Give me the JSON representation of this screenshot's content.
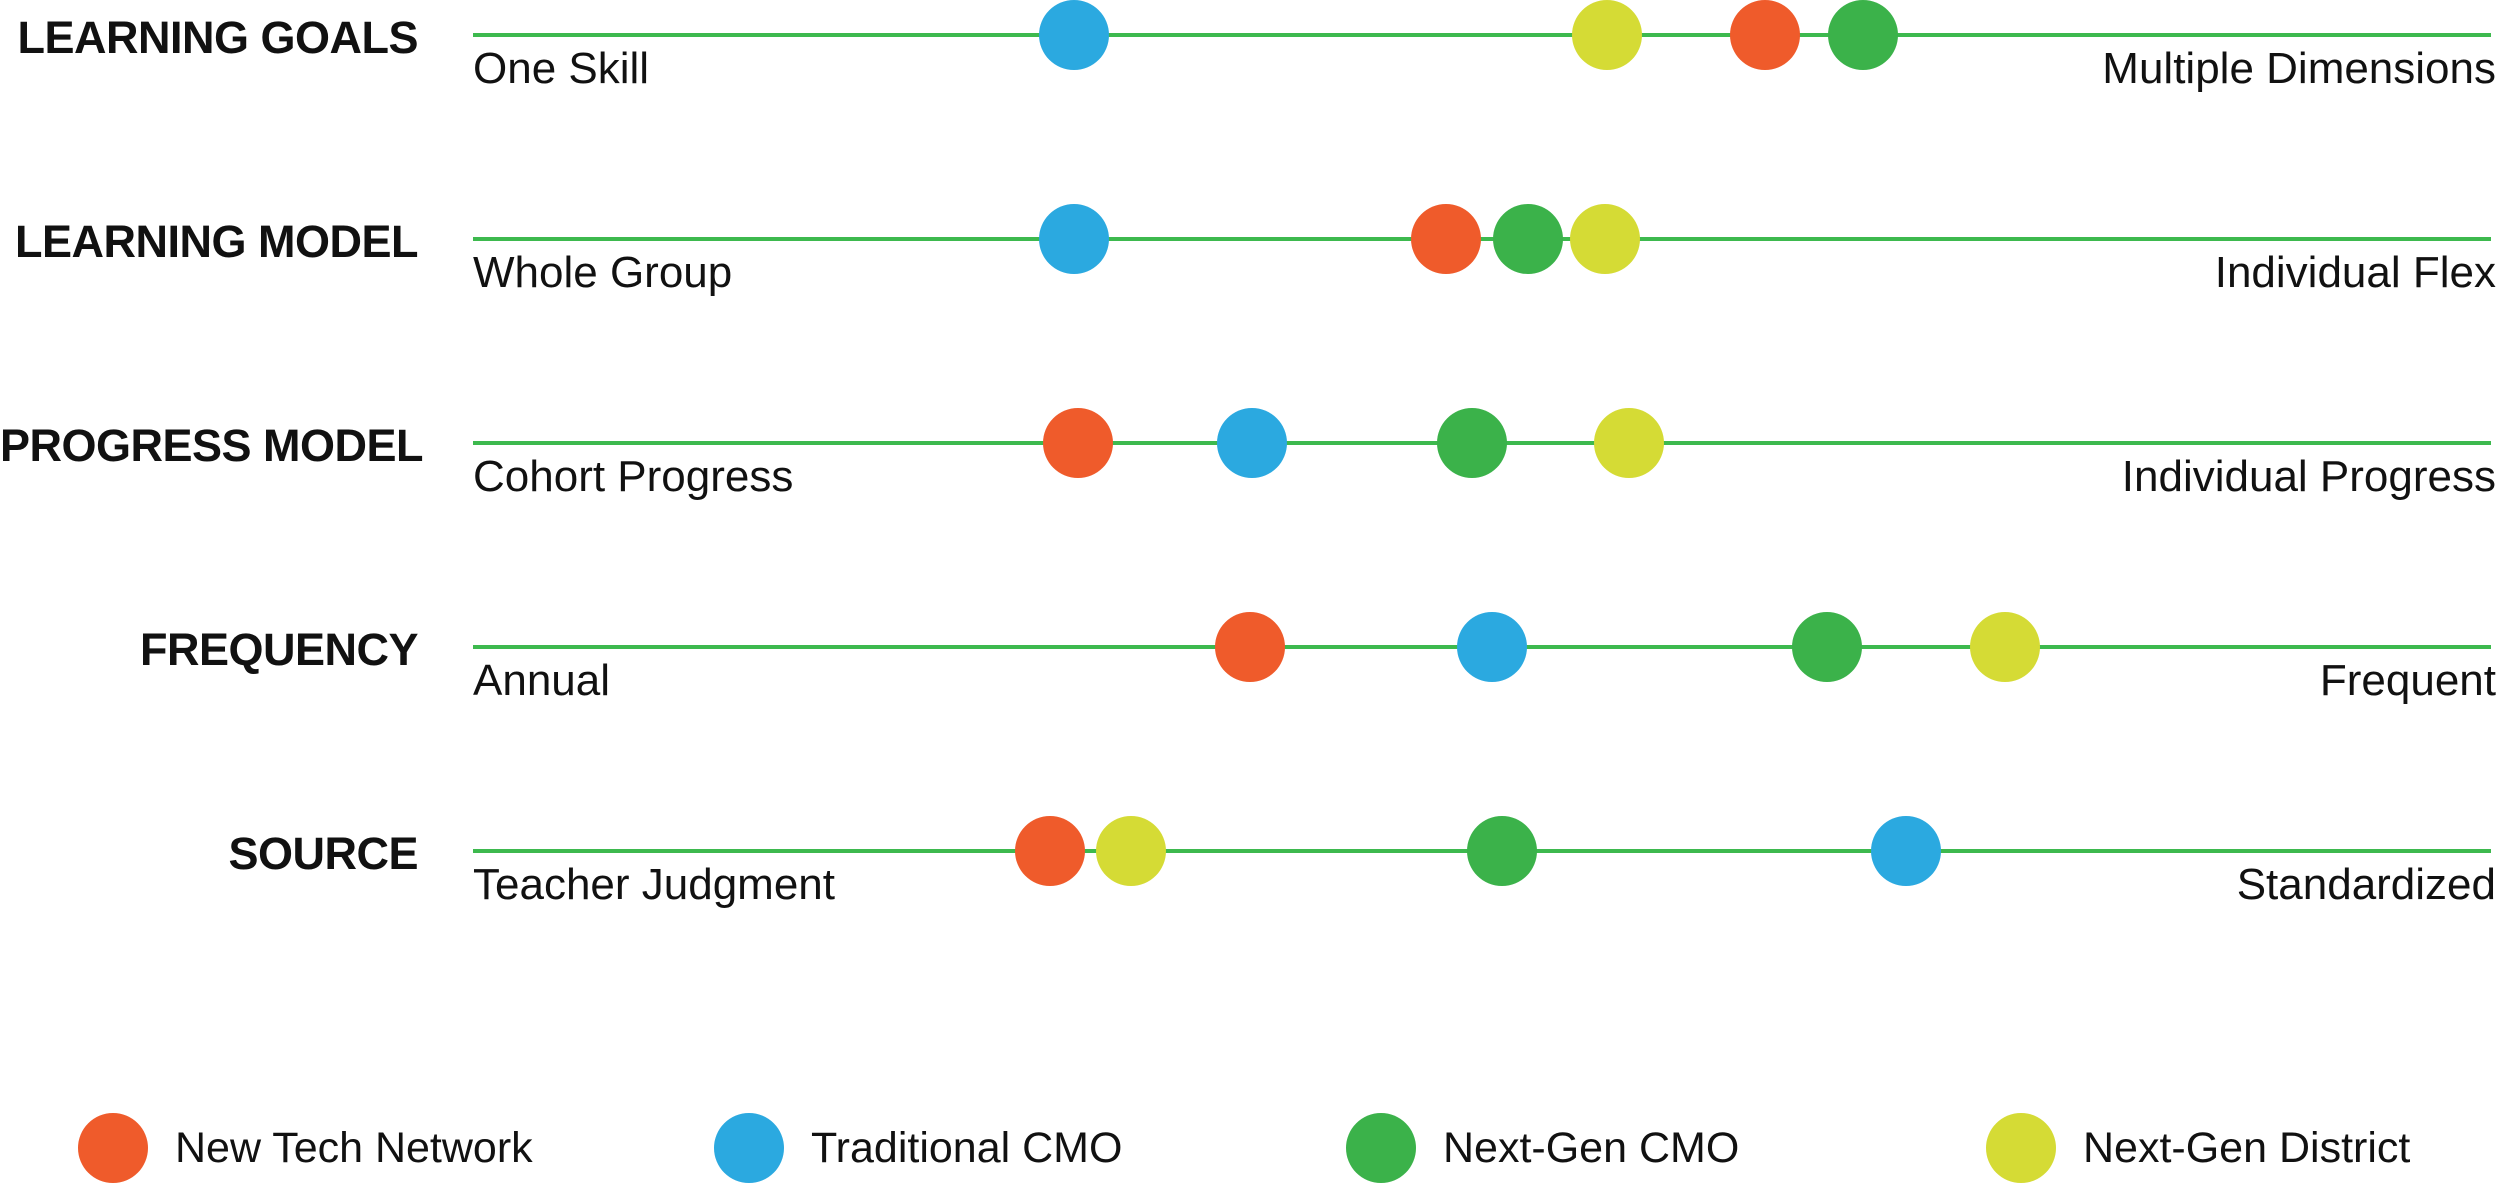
{
  "colors": {
    "new_tech_network": "#EF5B2B",
    "traditional_cmo": "#2BA9E0",
    "next_gen_cmo": "#3BB24A",
    "next_gen_district": "#D5DB35",
    "spectrum_line": "#3DB94E",
    "text": "#111111"
  },
  "legend": [
    {
      "id": "new_tech_network",
      "label": "New Tech Network"
    },
    {
      "id": "traditional_cmo",
      "label": "Traditional CMO"
    },
    {
      "id": "next_gen_cmo",
      "label": "Next-Gen CMO"
    },
    {
      "id": "next_gen_district",
      "label": "Next-Gen District"
    }
  ],
  "chart_data": {
    "type": "scatter",
    "subtype": "spectrum-dot-plot",
    "scale_note": "values are positions 0-100 along each spectrum; 0 = left anchor, 100 = right anchor",
    "legend_position": "bottom",
    "grid": false,
    "rows": [
      {
        "label": "LEARNING GOALS",
        "left_anchor": "One Skill",
        "right_anchor": "Multiple Dimensions",
        "values": {
          "new_tech_network": 64.0,
          "traditional_cmo": 29.8,
          "next_gen_cmo": 68.9,
          "next_gen_district": 56.2
        }
      },
      {
        "label": "LEARNING MODEL",
        "left_anchor": "Whole Group",
        "right_anchor": "Individual Flex",
        "values": {
          "new_tech_network": 48.2,
          "traditional_cmo": 29.8,
          "next_gen_cmo": 52.3,
          "next_gen_district": 56.1
        }
      },
      {
        "label": "PROGRESS MODEL",
        "left_anchor": "Cohort Progress",
        "right_anchor": "Individual Progress",
        "values": {
          "new_tech_network": 30.0,
          "traditional_cmo": 38.6,
          "next_gen_cmo": 49.5,
          "next_gen_district": 57.3
        }
      },
      {
        "label": "FREQUENCY",
        "left_anchor": "Annual",
        "right_anchor": "Frequent",
        "values": {
          "new_tech_network": 38.5,
          "traditional_cmo": 50.5,
          "next_gen_cmo": 67.1,
          "next_gen_district": 75.9
        }
      },
      {
        "label": "SOURCE",
        "left_anchor": "Teacher Judgment",
        "right_anchor": "Standardized",
        "values": {
          "new_tech_network": 28.6,
          "traditional_cmo": 71.0,
          "next_gen_cmo": 51.0,
          "next_gen_district": 32.6
        }
      }
    ]
  }
}
